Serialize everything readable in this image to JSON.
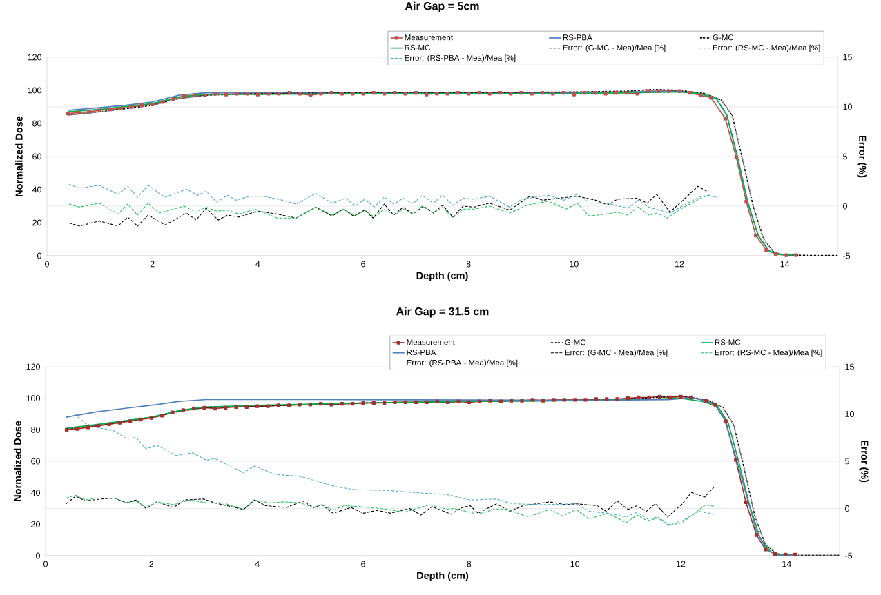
{
  "chart_data": [
    {
      "type": "line",
      "title": "Air Gap = 5cm",
      "xlabel": "Depth (cm)",
      "ylabel": "Normalized Dose",
      "y2label": "Error (%)",
      "xlim": [
        0,
        15
      ],
      "xticks": [
        0,
        2,
        4,
        6,
        8,
        10,
        12,
        14
      ],
      "ylim": [
        0,
        120
      ],
      "yticks": [
        0,
        20,
        40,
        60,
        80,
        100,
        120
      ],
      "y2lim": [
        -5,
        15
      ],
      "y2ticks": [
        -5,
        0,
        5,
        10,
        15
      ],
      "grid": "y2",
      "legend": "top right",
      "series": [
        {
          "name": "Measurement",
          "color": "#c0504d",
          "marker": "square",
          "line_style": "solid",
          "x": [
            0.4,
            0.6,
            0.8,
            1.0,
            1.2,
            1.4,
            1.6,
            1.8,
            2.0,
            2.2,
            2.4,
            2.6,
            2.8,
            3.0,
            3.2,
            3.4,
            3.6,
            3.8,
            4.0,
            4.2,
            4.4,
            4.6,
            4.8,
            5.0,
            5.2,
            5.4,
            5.6,
            5.8,
            6.0,
            6.2,
            6.4,
            6.6,
            6.8,
            7.0,
            7.2,
            7.4,
            7.6,
            7.8,
            8.0,
            8.2,
            8.4,
            8.6,
            8.8,
            9.0,
            9.2,
            9.4,
            9.6,
            9.8,
            10.0,
            10.2,
            10.4,
            10.6,
            10.8,
            11.0,
            11.2,
            11.4,
            11.6,
            11.8,
            12.0,
            12.2,
            12.4,
            12.6,
            12.87,
            13.08,
            13.27,
            13.45,
            13.65,
            13.83,
            14.03,
            14.21
          ],
          "values": [
            86,
            86.5,
            87,
            88,
            88.5,
            89,
            90,
            91,
            91.5,
            93,
            95,
            96.5,
            97,
            97,
            98,
            97.5,
            98,
            98,
            97.5,
            98,
            98,
            98.5,
            98,
            97,
            98,
            98.5,
            98,
            98,
            98,
            98.5,
            98,
            98.5,
            98,
            98.5,
            97.5,
            98,
            98,
            98.5,
            98,
            98.5,
            98,
            98.5,
            98,
            98.5,
            98,
            98.5,
            98,
            98.5,
            97.5,
            98.5,
            98.5,
            98,
            98.5,
            98.5,
            98,
            99.5,
            99.5,
            99.5,
            99.5,
            98.5,
            97,
            95.5,
            83,
            59.5,
            32.7,
            12.3,
            3.5,
            1.1,
            0.4,
            0.4
          ]
        },
        {
          "name": "RS-PBA",
          "color": "#4f81bd",
          "line_style": "solid",
          "x": [
            0.4,
            1.0,
            1.5,
            2.0,
            2.5,
            3.0,
            4.0,
            6.0,
            8.0,
            10.0,
            11.0,
            12.0,
            12.4,
            12.7,
            12.9,
            13.1,
            13.3,
            13.5,
            13.7,
            13.9,
            14.2
          ],
          "values": [
            88,
            89.5,
            91,
            93,
            97,
            98.5,
            98.5,
            98.5,
            98.5,
            98.5,
            99,
            99.5,
            98,
            95,
            85,
            60,
            32,
            12,
            3,
            0.8,
            0.3
          ]
        },
        {
          "name": "G-MC",
          "color": "#000000",
          "line_style": "dotted",
          "x": [
            0.4,
            1.0,
            2.0,
            2.5,
            3.0,
            4.0,
            6.0,
            8.0,
            10.0,
            11.0,
            11.5,
            12.0,
            12.5,
            12.8,
            13.0,
            13.2,
            13.4,
            13.6,
            13.8,
            14.0,
            14.5,
            15.0
          ],
          "values": [
            85,
            87,
            91,
            95,
            97,
            98,
            98.5,
            98.5,
            99,
            99.5,
            100.5,
            100,
            98,
            94,
            85,
            58,
            30,
            10,
            2,
            0.5,
            0.2,
            0.2
          ]
        },
        {
          "name": "RS-MC",
          "color": "#00b050",
          "line_style": "solid",
          "x": [
            0.4,
            1.0,
            2.0,
            2.5,
            3.0,
            4.0,
            6.0,
            8.0,
            10.0,
            11.0,
            12.0,
            12.4,
            12.7,
            12.9,
            13.1,
            13.3,
            13.5,
            13.7,
            13.9,
            14.2
          ],
          "values": [
            87,
            88.5,
            92,
            96,
            97.5,
            97.5,
            98,
            98,
            98,
            98.5,
            99,
            98,
            95,
            85,
            60,
            32,
            12,
            3,
            0.8,
            0.3
          ]
        },
        {
          "name": "Error: (G-MC - Mea)/Mea [%]",
          "color": "#000000",
          "line_style": "dashed",
          "axis": "y2",
          "x": [
            0.42,
            0.62,
            0.99,
            1.35,
            1.53,
            1.72,
            1.92,
            2.24,
            2.65,
            2.83,
            3.02,
            3.25,
            3.43,
            3.64,
            4.0,
            4.37,
            4.73,
            5.1,
            5.41,
            5.62,
            5.82,
            6.03,
            6.19,
            6.4,
            6.58,
            6.76,
            6.94,
            7.15,
            7.33,
            7.51,
            7.7,
            7.9,
            8.1,
            8.4,
            8.78,
            9.16,
            9.41,
            9.71,
            10.06,
            10.41,
            10.64,
            10.82,
            11.19,
            11.39,
            11.57,
            11.82,
            12.07,
            12.35,
            12.52
          ],
          "values": [
            -1.7,
            -2.0,
            -1.5,
            -2.0,
            -1.1,
            -2.0,
            -0.9,
            -1.9,
            -0.7,
            -1.4,
            -0.2,
            -1.4,
            -0.9,
            -1.1,
            -0.5,
            -0.8,
            -1.2,
            -0.1,
            -1.0,
            -0.3,
            -1.0,
            -0.4,
            -1.2,
            0.2,
            -0.9,
            -0.1,
            -0.8,
            0.0,
            -0.7,
            0.1,
            -1.1,
            0.0,
            -0.1,
            0.3,
            -0.4,
            1.0,
            0.6,
            0.8,
            1.0,
            0.6,
            0.1,
            0.7,
            0.8,
            0.3,
            1.2,
            -0.6,
            0.6,
            2.0,
            1.5
          ]
        },
        {
          "name": "Error: (RS-MC - Mea)/Mea [%]",
          "color": "#22c55e",
          "line_style": "dashed",
          "axis": "y2",
          "x": [
            0.42,
            0.62,
            0.99,
            1.35,
            1.53,
            1.72,
            1.92,
            2.13,
            2.6,
            2.83,
            3.02,
            3.22,
            3.43,
            3.64,
            3.95,
            4.37,
            4.73,
            5.1,
            5.41,
            5.62,
            5.85,
            6.03,
            6.21,
            6.4,
            6.6,
            6.76,
            6.94,
            7.12,
            7.33,
            7.51,
            7.7,
            7.9,
            8.1,
            8.4,
            8.78,
            9.11,
            9.51,
            9.86,
            10.06,
            10.29,
            10.61,
            10.82,
            11.02,
            11.22,
            11.42,
            11.57,
            11.77,
            12.02,
            12.37,
            12.55,
            12.7
          ],
          "values": [
            0.2,
            -0.1,
            0.3,
            -0.8,
            0.2,
            -0.9,
            0.3,
            -0.7,
            0.0,
            -0.6,
            -0.1,
            -0.5,
            -0.4,
            -0.8,
            -0.3,
            -1.2,
            -1.2,
            -0.1,
            -0.9,
            -0.3,
            -1.0,
            -0.4,
            -1.1,
            -0.3,
            -0.9,
            -0.3,
            -0.8,
            0.0,
            -0.7,
            -0.1,
            -1.2,
            -0.3,
            -0.3,
            0.0,
            -0.7,
            0.1,
            0.5,
            -0.3,
            0.3,
            -1.0,
            -0.8,
            -0.6,
            -0.9,
            -0.1,
            -0.9,
            -0.7,
            -1.2,
            -0.3,
            0.7,
            1.1,
            0.9
          ]
        },
        {
          "name": "Error: (RS-PBA - Mea)/Mea [%]",
          "color": "#4bacc6",
          "line_style": "dashed",
          "axis": "y2",
          "x": [
            0.42,
            0.62,
            0.99,
            1.35,
            1.53,
            1.72,
            1.92,
            2.24,
            2.65,
            2.86,
            3.02,
            3.22,
            3.43,
            3.59,
            3.85,
            4.11,
            4.47,
            4.73,
            5.1,
            5.41,
            5.67,
            5.85,
            6.03,
            6.21,
            6.4,
            6.58,
            6.76,
            6.94,
            7.12,
            7.33,
            7.51,
            7.7,
            7.9,
            8.1,
            8.4,
            8.78,
            9.01,
            9.51,
            9.81,
            10.06,
            10.31,
            10.61,
            11.02,
            11.22,
            11.42,
            11.82,
            12.12,
            12.37,
            12.55,
            12.7
          ],
          "values": [
            2.2,
            1.8,
            2.1,
            1.2,
            2.0,
            0.9,
            2.1,
            0.9,
            1.7,
            1.1,
            1.5,
            0.4,
            1.1,
            0.6,
            1.0,
            1.0,
            0.6,
            0.2,
            1.3,
            0.3,
            0.8,
            0.0,
            0.7,
            -0.1,
            0.9,
            0.2,
            0.8,
            0.2,
            1.1,
            0.3,
            1.1,
            0.1,
            0.8,
            0.7,
            1.0,
            -0.1,
            0.7,
            1.1,
            0.6,
            1.2,
            0.3,
            0.3,
            -0.2,
            0.6,
            -0.1,
            -0.7,
            0.2,
            0.9,
            1.1,
            0.9
          ]
        }
      ]
    },
    {
      "type": "line",
      "title": "Air Gap = 31.5 cm",
      "xlabel": "Depth (cm)",
      "ylabel": "Normalized Dose",
      "y2label": "Error (%)",
      "xlim": [
        0,
        15
      ],
      "xticks": [
        0,
        2,
        4,
        6,
        8,
        10,
        12,
        14
      ],
      "ylim": [
        0,
        120
      ],
      "yticks": [
        0,
        20,
        40,
        60,
        80,
        100,
        120
      ],
      "y2lim": [
        -5,
        15
      ],
      "y2ticks": [
        -5,
        0,
        5,
        10,
        15
      ],
      "grid": "y2",
      "legend": "top right",
      "series": [
        {
          "name": "Measurement",
          "color": "#a5302c",
          "marker": "square",
          "line_style": "solid",
          "x": [
            0.4,
            0.6,
            0.8,
            1.0,
            1.2,
            1.4,
            1.6,
            1.8,
            2.0,
            2.2,
            2.4,
            2.6,
            2.8,
            3.0,
            3.2,
            3.4,
            3.6,
            3.8,
            4.0,
            4.2,
            4.4,
            4.6,
            4.8,
            5.0,
            5.2,
            5.4,
            5.6,
            5.8,
            6.0,
            6.2,
            6.4,
            6.6,
            6.8,
            7.0,
            7.2,
            7.4,
            7.6,
            7.8,
            8.0,
            8.2,
            8.4,
            8.6,
            8.8,
            9.0,
            9.2,
            9.4,
            9.6,
            9.8,
            10.0,
            10.2,
            10.4,
            10.6,
            10.8,
            11.0,
            11.2,
            11.4,
            11.6,
            11.8,
            12.0,
            12.2,
            12.48,
            12.65,
            12.85,
            13.04,
            13.23,
            13.43,
            13.6,
            13.78,
            13.98,
            14.16
          ],
          "values": [
            80,
            80.5,
            81.5,
            82.5,
            83.5,
            84.5,
            85.5,
            86.5,
            87.5,
            89,
            91,
            92.5,
            93.5,
            94,
            93.5,
            94,
            94.5,
            94.5,
            95,
            95,
            95.5,
            95.5,
            96,
            96,
            96.5,
            96,
            96.5,
            96.5,
            97,
            97,
            97,
            97.5,
            97.5,
            97.5,
            97.5,
            98,
            97.5,
            98,
            97.5,
            98,
            98.5,
            98,
            98.5,
            98.5,
            99,
            98.5,
            99,
            99,
            99,
            99,
            99.5,
            99.5,
            99.5,
            100,
            100.5,
            100.5,
            101,
            100.5,
            101,
            100.5,
            98.3,
            95.9,
            85.5,
            60.9,
            34,
            13.1,
            4,
            1.1,
            0.7,
            0.7
          ]
        },
        {
          "name": "G-MC",
          "color": "#000000",
          "line_style": "dotted",
          "x": [
            0.4,
            1.0,
            2.0,
            2.5,
            3.0,
            4.0,
            6.0,
            8.0,
            10.0,
            11.0,
            12.0,
            12.5,
            12.8,
            13.0,
            13.2,
            13.4,
            13.6,
            13.8,
            14.0,
            15.0
          ],
          "values": [
            80.5,
            83,
            88,
            91.5,
            94,
            95,
            97,
            98,
            98.5,
            99.5,
            101.5,
            99,
            94,
            83,
            55,
            25,
            7,
            1.5,
            0.3,
            0.3
          ]
        },
        {
          "name": "RS-MC",
          "color": "#00b050",
          "line_style": "solid",
          "x": [
            0.4,
            1.0,
            2.0,
            2.5,
            3.0,
            4.0,
            6.0,
            8.0,
            10.0,
            11.0,
            12.0,
            12.4,
            12.7,
            12.9,
            13.1,
            13.3,
            13.5,
            13.7,
            13.9,
            14.2
          ],
          "values": [
            81,
            83.5,
            88,
            92,
            94.5,
            95.5,
            97,
            98,
            98.5,
            99,
            100,
            98,
            95,
            84,
            59,
            32,
            11,
            2.5,
            0.5,
            0.3
          ]
        },
        {
          "name": "RS-PBA",
          "color": "#4f81bd",
          "line_style": "solid",
          "x": [
            0.39,
            0.96,
            1.48,
            2.1,
            2.52,
            3.04,
            5.12,
            8.04,
            10.52,
            11.77,
            12.23,
            12.63,
            12.83,
            13.03,
            13.23,
            13.43,
            13.63,
            13.83,
            14.13
          ],
          "values": [
            88,
            91.4,
            93.5,
            96,
            98,
            99.2,
            99.2,
            98.9,
            98.8,
            99.1,
            100.4,
            96.7,
            86.3,
            63.8,
            39.7,
            15.5,
            3.5,
            0.3,
            0.3
          ]
        },
        {
          "name": "Error: (G-MC - Mea)/Mea [%]",
          "color": "#000000",
          "line_style": "dashed",
          "axis": "y2",
          "x": [
            0.39,
            0.57,
            0.75,
            1.04,
            1.3,
            1.53,
            1.71,
            1.9,
            2.1,
            2.42,
            2.62,
            2.99,
            3.19,
            3.74,
            3.95,
            4.16,
            4.55,
            4.86,
            5.06,
            5.22,
            5.43,
            5.77,
            6.0,
            6.26,
            6.52,
            6.88,
            7.09,
            7.3,
            7.66,
            7.87,
            8.02,
            8.17,
            8.52,
            8.77,
            9.02,
            9.52,
            9.82,
            10.02,
            10.42,
            10.59,
            10.8,
            11.0,
            11.17,
            11.35,
            11.52,
            11.75,
            12.03,
            12.2,
            12.45,
            12.65
          ],
          "values": [
            0.5,
            1.3,
            0.8,
            1.0,
            1.1,
            0.6,
            0.9,
            0.0,
            0.7,
            0.1,
            0.9,
            1.0,
            0.6,
            -0.1,
            0.9,
            0.3,
            0.1,
            0.8,
            0.1,
            0.4,
            -0.5,
            0.1,
            -0.5,
            -0.2,
            -0.5,
            0.0,
            -0.7,
            0.2,
            -0.6,
            0.1,
            0.3,
            -0.5,
            0.5,
            -0.3,
            0.3,
            0.7,
            0.4,
            0.5,
            0.3,
            -0.3,
            0.8,
            -0.1,
            0.3,
            -0.3,
            0.5,
            -0.9,
            0.5,
            1.7,
            1.2,
            2.4
          ]
        },
        {
          "name": "Error: (RS-MC - Mea)/Mea [%]",
          "color": "#22c55e",
          "line_style": "dashed",
          "axis": "y2",
          "x": [
            0.39,
            0.57,
            0.75,
            0.96,
            1.3,
            1.53,
            1.71,
            1.9,
            2.1,
            2.42,
            2.73,
            3.04,
            3.35,
            3.74,
            3.95,
            4.23,
            4.49,
            4.81,
            5.06,
            5.22,
            5.43,
            5.64,
            6.16,
            6.47,
            6.78,
            7.25,
            7.61,
            7.71,
            8.17,
            8.47,
            8.72,
            9.12,
            9.52,
            9.77,
            10.02,
            10.27,
            10.62,
            10.97,
            11.17,
            11.37,
            11.57,
            11.77,
            12.03,
            12.47,
            12.65
          ],
          "values": [
            1.1,
            1.4,
            0.9,
            1.1,
            1.1,
            0.6,
            0.8,
            0.1,
            0.7,
            0.4,
            0.9,
            0.6,
            0.6,
            -0.1,
            0.9,
            0.6,
            0.7,
            0.6,
            0.1,
            0.4,
            -0.2,
            0.3,
            0.1,
            -0.1,
            -0.4,
            0.4,
            -0.1,
            0.0,
            -0.6,
            -0.1,
            -0.1,
            -0.9,
            -0.1,
            -0.8,
            -0.1,
            -1.1,
            -0.5,
            -1.5,
            -0.7,
            -1.3,
            -1.0,
            -1.8,
            -1.5,
            0.4,
            0.2
          ]
        },
        {
          "name": "Error: (RS-PBA - Mea)/Mea [%]",
          "color": "#4bacc6",
          "line_style": "dashed",
          "axis": "y2",
          "x": [
            0.39,
            0.55,
            0.75,
            0.96,
            1.3,
            1.53,
            1.71,
            1.9,
            2.1,
            2.47,
            2.78,
            3.04,
            3.19,
            3.45,
            3.74,
            3.95,
            4.34,
            4.81,
            5.12,
            5.48,
            5.84,
            6.47,
            7.2,
            7.56,
            8.02,
            8.52,
            8.82,
            9.42,
            10.02,
            10.27,
            10.62,
            10.97,
            11.17,
            11.37,
            11.57,
            11.77,
            12.03,
            12.33,
            12.65
          ],
          "values": [
            10.0,
            10.0,
            9.0,
            8.6,
            8.2,
            7.4,
            7.5,
            6.3,
            6.7,
            5.6,
            5.9,
            5.1,
            5.3,
            4.6,
            3.8,
            4.5,
            3.6,
            3.4,
            2.9,
            2.3,
            2.0,
            1.9,
            1.6,
            1.5,
            0.9,
            1.0,
            0.5,
            0.4,
            0.5,
            -0.3,
            -0.5,
            -0.9,
            -0.4,
            -1.1,
            -0.9,
            -1.7,
            -1.3,
            -0.3,
            -0.6
          ]
        }
      ]
    }
  ]
}
